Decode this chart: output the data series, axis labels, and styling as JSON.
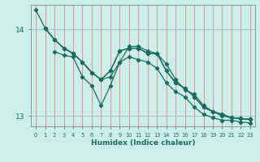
{
  "xlabel": "Humidex (Indice chaleur)",
  "background_color": "#cceee8",
  "line_color": "#1a6b5e",
  "grid_color_v": "#e88080",
  "grid_color_h": "#90c8c0",
  "xlim": [
    -0.5,
    23.5
  ],
  "ylim": [
    12.88,
    14.28
  ],
  "yticks": [
    13,
    14
  ],
  "xticks": [
    0,
    1,
    2,
    3,
    4,
    5,
    6,
    7,
    8,
    9,
    10,
    11,
    12,
    13,
    14,
    15,
    16,
    17,
    18,
    19,
    20,
    21,
    22,
    23
  ],
  "line1_x": [
    0,
    1,
    2,
    3,
    4,
    5,
    6,
    7,
    8,
    9,
    10,
    11,
    12,
    13,
    14,
    15,
    16,
    17,
    18,
    19,
    20,
    21,
    22,
    23
  ],
  "line1_y": [
    14.22,
    14.01,
    13.88,
    13.78,
    13.72,
    13.62,
    13.5,
    13.42,
    13.52,
    13.75,
    13.78,
    13.78,
    13.72,
    13.72,
    13.52,
    13.38,
    13.32,
    13.22,
    13.1,
    13.05,
    13.02,
    12.98,
    12.97,
    12.96
  ],
  "line2_x": [
    1,
    2,
    3,
    4,
    5,
    6,
    7,
    8,
    9,
    10,
    11,
    12,
    13,
    14,
    15,
    16,
    17,
    18,
    19,
    20,
    21,
    22,
    23
  ],
  "line2_y": [
    14.01,
    13.88,
    13.78,
    13.72,
    13.62,
    13.5,
    13.42,
    13.52,
    13.75,
    13.78,
    13.78,
    13.72,
    13.72,
    13.52,
    13.38,
    13.32,
    13.22,
    13.1,
    13.05,
    13.02,
    12.98,
    12.97,
    12.96
  ],
  "line3_x": [
    2,
    3,
    4,
    5,
    6,
    7,
    8,
    9,
    10,
    11,
    12,
    13,
    14,
    15,
    16,
    17,
    18,
    19,
    20,
    21,
    22,
    23
  ],
  "line3_y": [
    13.74,
    13.7,
    13.68,
    13.45,
    13.35,
    13.12,
    13.35,
    13.62,
    13.8,
    13.8,
    13.75,
    13.72,
    13.6,
    13.42,
    13.3,
    13.25,
    13.12,
    13.05,
    13.0,
    12.98,
    12.97,
    12.96
  ],
  "line4_x": [
    1,
    2,
    3,
    4,
    5,
    6,
    7,
    8,
    9,
    10,
    11,
    12,
    13,
    14,
    15,
    16,
    17,
    18,
    19,
    20,
    21,
    22,
    23
  ],
  "line4_y": [
    14.01,
    13.88,
    13.78,
    13.72,
    13.62,
    13.5,
    13.42,
    13.45,
    13.62,
    13.68,
    13.65,
    13.62,
    13.55,
    13.38,
    13.28,
    13.22,
    13.1,
    13.02,
    12.98,
    12.95,
    12.95,
    12.93,
    12.92
  ]
}
